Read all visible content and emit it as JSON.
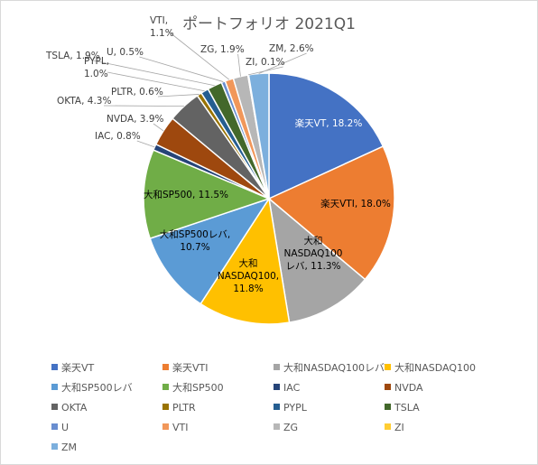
{
  "chart_data": {
    "type": "pie",
    "title": "ポートフォリオ 2021Q1",
    "categories": [
      "楽天VT",
      "楽天VTI",
      "大和NASDAQ100レバ",
      "大和NASDAQ100",
      "大和SP500レバ",
      "大和SP500",
      "IAC",
      "NVDA",
      "OKTA",
      "PLTR",
      "PYPL",
      "TSLA",
      "U",
      "VTI",
      "ZG",
      "ZI",
      "ZM"
    ],
    "values": [
      18.2,
      18.0,
      11.3,
      11.8,
      10.7,
      11.5,
      0.8,
      3.9,
      4.3,
      0.6,
      1.0,
      1.9,
      0.5,
      1.1,
      1.9,
      0.1,
      2.6
    ],
    "value_labels": [
      "楽天VT, 18.2%",
      "楽天VTI, 18.0%",
      "大和NASDAQ100レバ, 11.3%",
      "大和NASDAQ100, 11.8%",
      "大和SP500レバ, 10.7%",
      "大和SP500, 11.5%",
      "IAC, 0.8%",
      "NVDA, 3.9%",
      "OKTA, 4.3%",
      "PLTR, 0.6%",
      "PYPL, 1.0%",
      "TSLA, 1.9%",
      "U, 0.5%",
      "VTI, 1.1%",
      "ZG, 1.9%",
      "ZI, 0.1%",
      "ZM, 2.6%"
    ],
    "colors": [
      "#4472C4",
      "#ED7D31",
      "#A5A5A5",
      "#FFC000",
      "#5B9BD5",
      "#70AD47",
      "#264478",
      "#9E480E",
      "#636363",
      "#997300",
      "#255E91",
      "#43682B",
      "#698ED0",
      "#F1975A",
      "#B7B7B7",
      "#FFCD33",
      "#7CAFDD"
    ],
    "legend_position": "bottom"
  }
}
